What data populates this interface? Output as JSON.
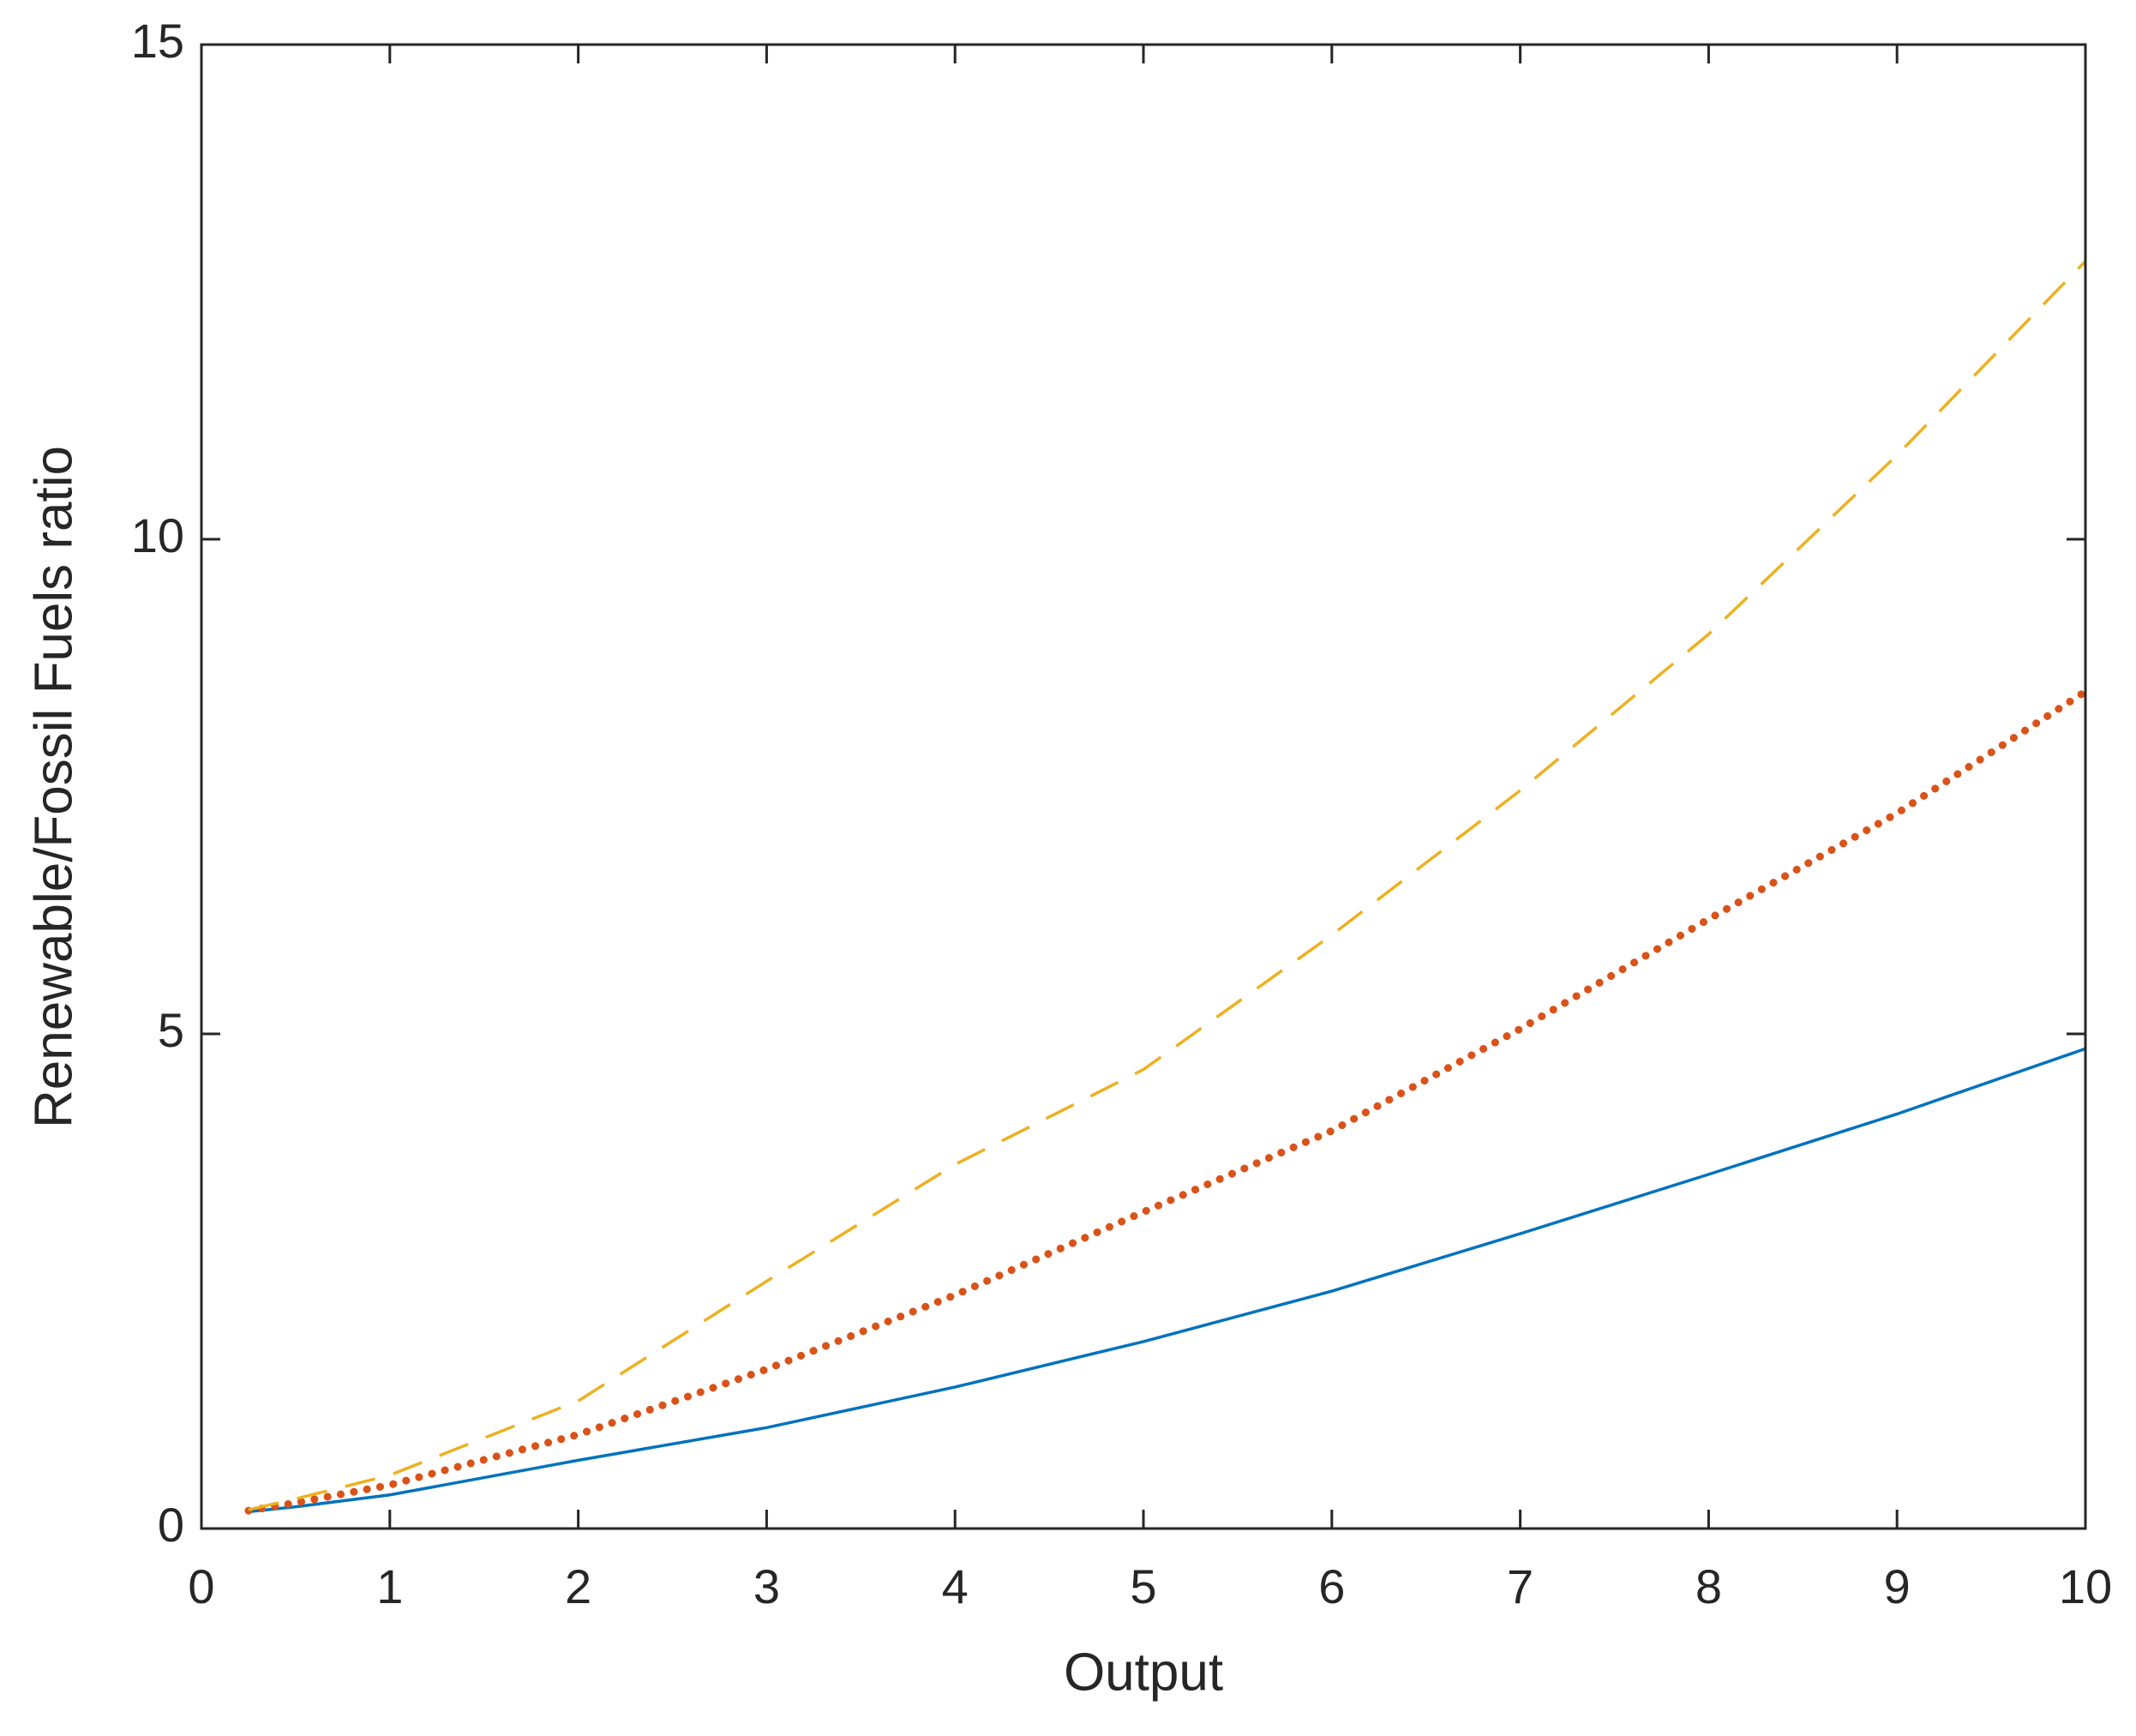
{
  "chart_data": {
    "type": "line",
    "x_label": "Output",
    "y_label": "Renewable/Fossil Fuels ratio",
    "x": [
      0.25,
      0.5,
      1,
      2,
      3,
      4,
      5,
      6,
      7,
      8,
      9,
      10
    ],
    "series": [
      {
        "color": "#0072bd",
        "style": "solid",
        "values": [
          0.17,
          0.22,
          0.34,
          0.69,
          1.02,
          1.43,
          1.89,
          2.4,
          2.98,
          3.58,
          4.19,
          4.85
        ]
      },
      {
        "color": "#d95319",
        "style": "dotted",
        "values": [
          0.18,
          0.26,
          0.44,
          0.95,
          1.61,
          2.36,
          3.2,
          4.02,
          5.05,
          6.16,
          7.23,
          8.46
        ]
      },
      {
        "color": "#edb120",
        "style": "dashed",
        "values": [
          0.19,
          0.3,
          0.54,
          1.29,
          2.5,
          3.68,
          4.64,
          6.0,
          7.46,
          9.04,
          10.85,
          12.81
        ]
      }
    ],
    "xlim": [
      0,
      10
    ],
    "xticks": [
      0,
      1,
      2,
      3,
      4,
      5,
      6,
      7,
      8,
      9,
      10
    ],
    "ylim": [
      0,
      15
    ],
    "yticks": [
      0,
      5,
      10,
      15
    ],
    "grid": false
  }
}
